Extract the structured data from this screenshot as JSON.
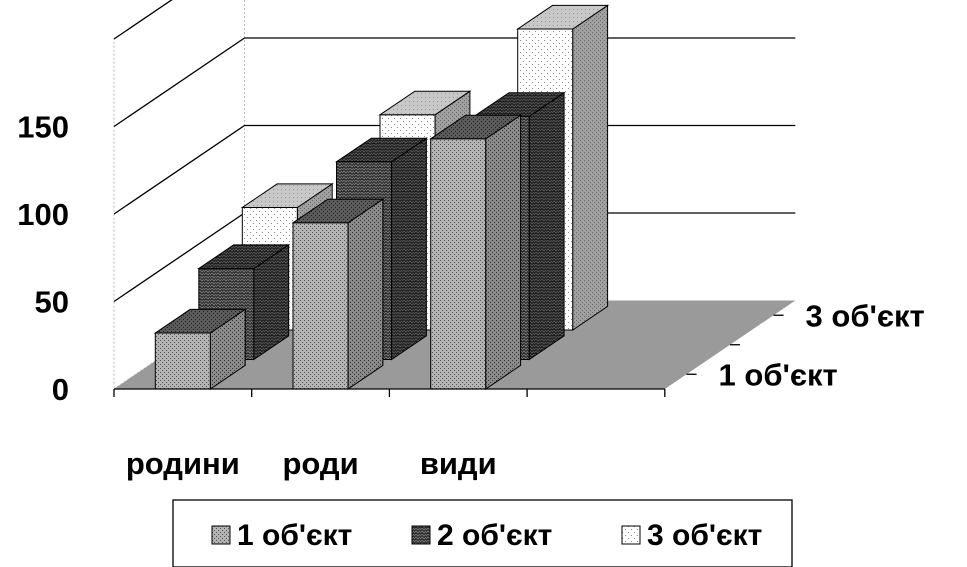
{
  "chart_data": {
    "type": "bar",
    "variant": "3d-column",
    "categories": [
      "родини",
      "роди",
      "види"
    ],
    "series": [
      {
        "name": "1 об'єкт",
        "values": [
          32,
          95,
          143
        ]
      },
      {
        "name": "2 об'єкт",
        "values": [
          52,
          113,
          139
        ]
      },
      {
        "name": "3 об'єкт",
        "values": [
          70,
          123,
          172
        ]
      }
    ],
    "depth_labels": [
      "1 об'єкт",
      "3 об'єкт"
    ],
    "y_ticks": [
      "0",
      "50",
      "100",
      "150"
    ],
    "ylim": [
      0,
      200
    ],
    "grid": true,
    "legend_position": "bottom",
    "colors": {
      "wall": "#ffffff",
      "floor": "#9a9a9a",
      "grid": "#000000"
    }
  }
}
